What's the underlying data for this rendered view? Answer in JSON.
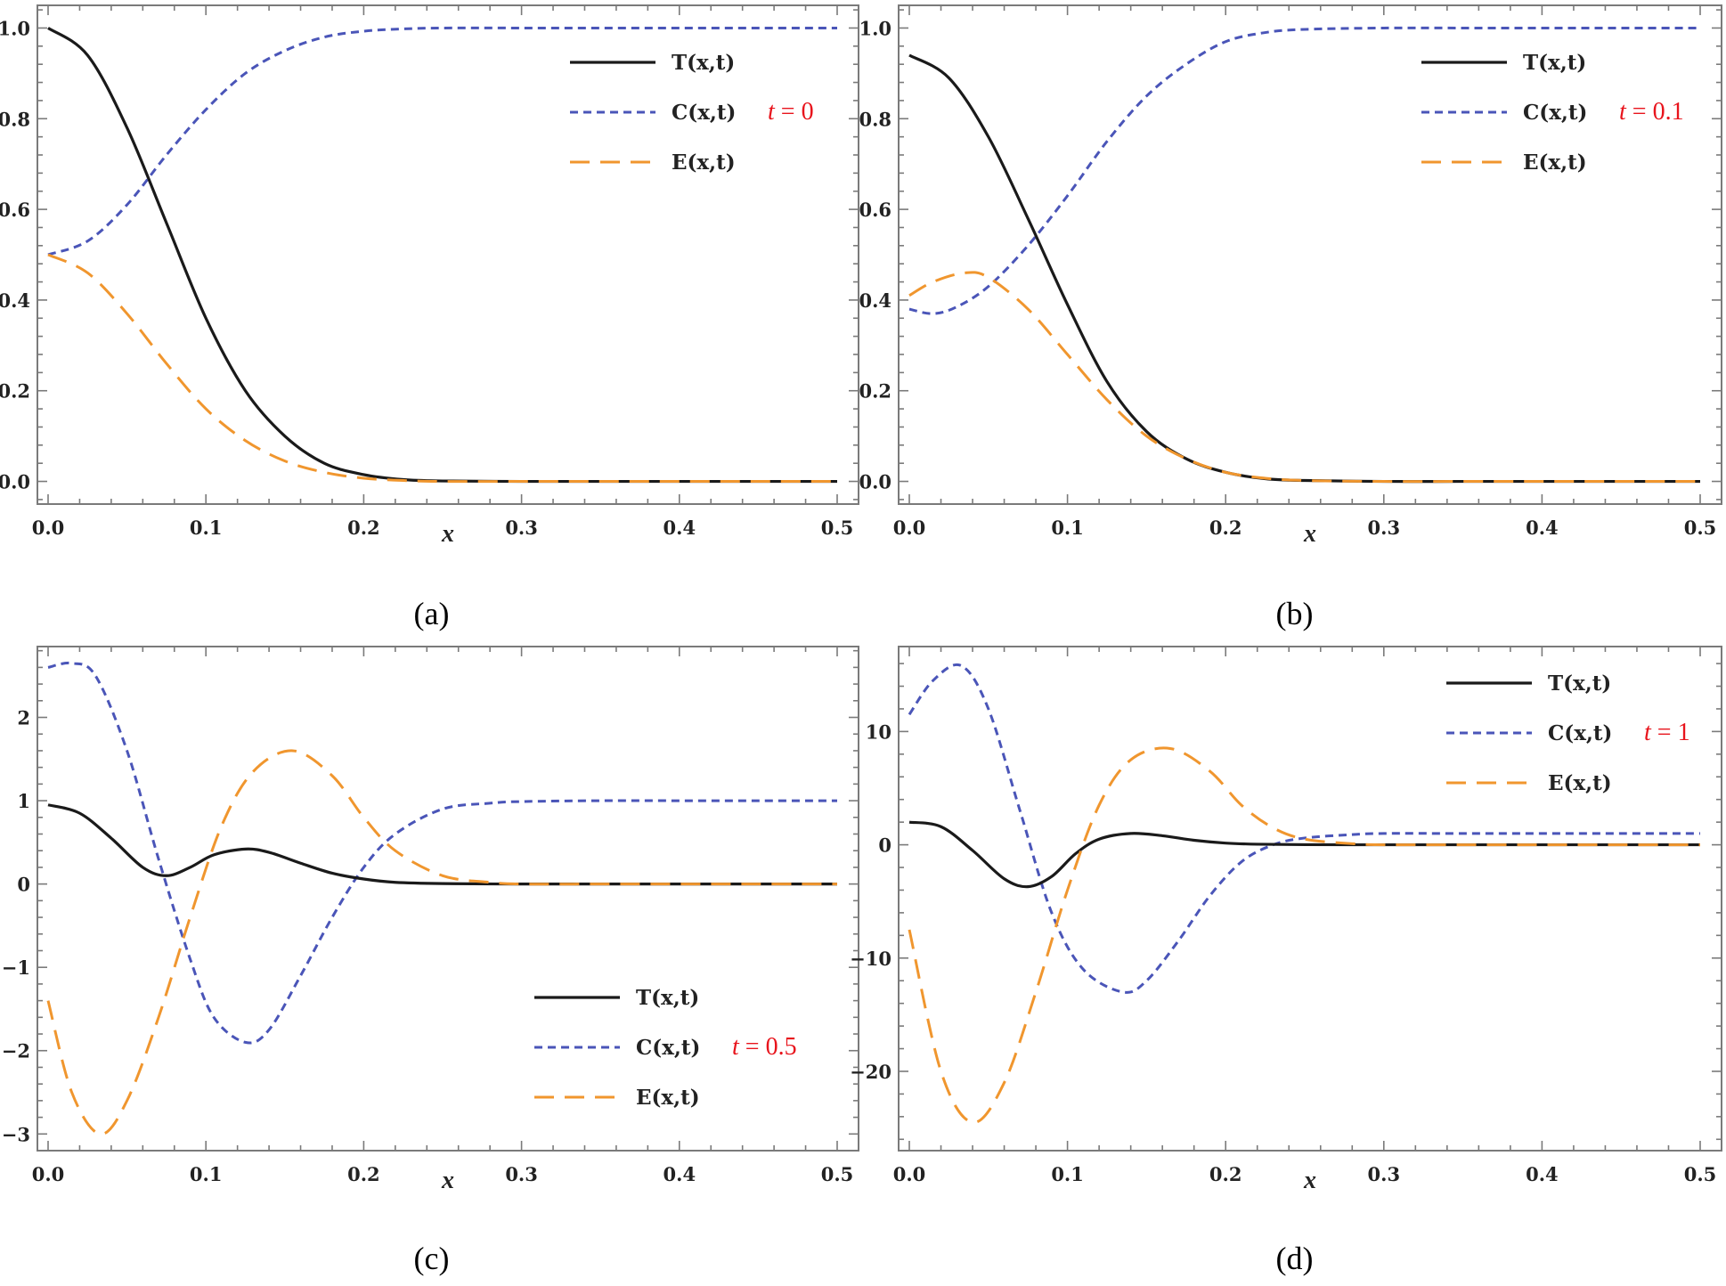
{
  "chart_data": [
    {
      "type": "line",
      "caption": "(a)",
      "xlabel": "x",
      "ylabel": "",
      "xlim": [
        0,
        0.5
      ],
      "ylim": [
        -0.05,
        1.05
      ],
      "xticks": [
        0,
        0.1,
        0.2,
        0.3,
        0.4,
        0.5
      ],
      "xtick_labels": [
        "0.0",
        "0.1",
        "0.2",
        "0.3",
        "0.4",
        "0.5"
      ],
      "yticks": [
        0,
        0.2,
        0.4,
        0.6,
        0.8,
        1.0
      ],
      "ytick_labels": [
        "0.0",
        "0.2",
        "0.4",
        "0.6",
        "0.8",
        "1.0"
      ],
      "time_label": "t = 0",
      "legend_position": "top-right",
      "colors": {
        "T": "#1a1a1a",
        "C": "#4a55b8",
        "E": "#f0962e"
      },
      "series": [
        {
          "name": "T(x,t)",
          "style": "solid",
          "x": [
            0,
            0.025,
            0.05,
            0.075,
            0.1,
            0.125,
            0.15,
            0.175,
            0.2,
            0.225,
            0.25,
            0.3,
            0.35,
            0.4,
            0.45,
            0.5
          ],
          "y": [
            1.0,
            0.94,
            0.78,
            0.57,
            0.36,
            0.2,
            0.1,
            0.04,
            0.015,
            0.004,
            0.001,
            0,
            0,
            0,
            0,
            0
          ]
        },
        {
          "name": "C(x,t)",
          "style": "dashed",
          "x": [
            0,
            0.025,
            0.05,
            0.075,
            0.1,
            0.125,
            0.15,
            0.175,
            0.2,
            0.225,
            0.25,
            0.3,
            0.35,
            0.4,
            0.45,
            0.5
          ],
          "y": [
            0.5,
            0.53,
            0.61,
            0.72,
            0.82,
            0.9,
            0.95,
            0.98,
            0.993,
            0.998,
            1.0,
            1.0,
            1.0,
            1.0,
            1.0,
            1.0
          ]
        },
        {
          "name": "E(x,t)",
          "style": "long-dashed",
          "x": [
            0,
            0.025,
            0.05,
            0.075,
            0.1,
            0.125,
            0.15,
            0.175,
            0.2,
            0.225,
            0.25,
            0.3,
            0.35,
            0.4,
            0.45,
            0.5
          ],
          "y": [
            0.5,
            0.46,
            0.37,
            0.26,
            0.16,
            0.09,
            0.045,
            0.02,
            0.007,
            0.002,
            0.0,
            0,
            0,
            0,
            0,
            0
          ]
        }
      ]
    },
    {
      "type": "line",
      "caption": "(b)",
      "xlabel": "x",
      "ylabel": "",
      "xlim": [
        0,
        0.5
      ],
      "ylim": [
        -0.05,
        1.05
      ],
      "xticks": [
        0,
        0.1,
        0.2,
        0.3,
        0.4,
        0.5
      ],
      "xtick_labels": [
        "0.0",
        "0.1",
        "0.2",
        "0.3",
        "0.4",
        "0.5"
      ],
      "yticks": [
        0,
        0.2,
        0.4,
        0.6,
        0.8,
        1.0
      ],
      "ytick_labels": [
        "0.0",
        "0.2",
        "0.4",
        "0.6",
        "0.8",
        "1.0"
      ],
      "time_label": "t = 0.1",
      "legend_position": "top-right",
      "colors": {
        "T": "#1a1a1a",
        "C": "#4a55b8",
        "E": "#f0962e"
      },
      "series": [
        {
          "name": "T(x,t)",
          "style": "solid",
          "x": [
            0,
            0.025,
            0.05,
            0.075,
            0.1,
            0.125,
            0.15,
            0.175,
            0.2,
            0.225,
            0.25,
            0.3,
            0.35,
            0.4,
            0.45,
            0.5
          ],
          "y": [
            0.94,
            0.89,
            0.76,
            0.58,
            0.39,
            0.22,
            0.11,
            0.05,
            0.02,
            0.006,
            0.002,
            0,
            0,
            0,
            0,
            0
          ]
        },
        {
          "name": "C(x,t)",
          "style": "dashed",
          "x": [
            0,
            0.015,
            0.03,
            0.05,
            0.075,
            0.1,
            0.125,
            0.15,
            0.175,
            0.2,
            0.225,
            0.25,
            0.3,
            0.35,
            0.4,
            0.45,
            0.5
          ],
          "y": [
            0.38,
            0.37,
            0.385,
            0.43,
            0.52,
            0.63,
            0.75,
            0.85,
            0.92,
            0.97,
            0.99,
            0.997,
            1.0,
            1.0,
            1.0,
            1.0,
            1.0
          ]
        },
        {
          "name": "E(x,t)",
          "style": "long-dashed",
          "x": [
            0,
            0.015,
            0.035,
            0.05,
            0.075,
            0.1,
            0.125,
            0.15,
            0.175,
            0.2,
            0.225,
            0.25,
            0.3,
            0.35,
            0.4,
            0.45,
            0.5
          ],
          "y": [
            0.41,
            0.44,
            0.46,
            0.45,
            0.38,
            0.28,
            0.18,
            0.1,
            0.05,
            0.02,
            0.007,
            0.002,
            0,
            0,
            0,
            0,
            0
          ]
        }
      ]
    },
    {
      "type": "line",
      "caption": "(c)",
      "xlabel": "x",
      "ylabel": "",
      "xlim": [
        0,
        0.5
      ],
      "ylim": [
        -3.2,
        2.85
      ],
      "xticks": [
        0,
        0.1,
        0.2,
        0.3,
        0.4,
        0.5
      ],
      "xtick_labels": [
        "0.0",
        "0.1",
        "0.2",
        "0.3",
        "0.4",
        "0.5"
      ],
      "yticks": [
        -3,
        -2,
        -1,
        0,
        1,
        2
      ],
      "ytick_labels": [
        "−3",
        "−2",
        "−1",
        "0",
        "1",
        "2"
      ],
      "time_label": "t = 0.5",
      "legend_position": "bottom-right",
      "colors": {
        "T": "#1a1a1a",
        "C": "#4a55b8",
        "E": "#f0962e"
      },
      "series": [
        {
          "name": "T(x,t)",
          "style": "solid",
          "x": [
            0,
            0.02,
            0.04,
            0.06,
            0.075,
            0.09,
            0.105,
            0.125,
            0.14,
            0.16,
            0.18,
            0.2,
            0.22,
            0.25,
            0.3,
            0.35,
            0.4,
            0.45,
            0.5
          ],
          "y": [
            0.95,
            0.85,
            0.55,
            0.2,
            0.1,
            0.2,
            0.35,
            0.42,
            0.38,
            0.25,
            0.13,
            0.06,
            0.02,
            0.005,
            0,
            0,
            0,
            0,
            0
          ]
        },
        {
          "name": "C(x,t)",
          "style": "dashed",
          "x": [
            0,
            0.015,
            0.03,
            0.05,
            0.07,
            0.09,
            0.105,
            0.125,
            0.14,
            0.16,
            0.18,
            0.2,
            0.22,
            0.25,
            0.28,
            0.3,
            0.35,
            0.4,
            0.45,
            0.5
          ],
          "y": [
            2.6,
            2.65,
            2.5,
            1.6,
            0.3,
            -0.9,
            -1.6,
            -1.9,
            -1.75,
            -1.1,
            -0.4,
            0.2,
            0.6,
            0.9,
            0.97,
            0.99,
            1.0,
            1.0,
            1.0,
            1.0
          ]
        },
        {
          "name": "E(x,t)",
          "style": "long-dashed",
          "x": [
            0,
            0.015,
            0.033,
            0.05,
            0.07,
            0.09,
            0.11,
            0.13,
            0.155,
            0.18,
            0.2,
            0.22,
            0.25,
            0.28,
            0.3,
            0.35,
            0.4,
            0.45,
            0.5
          ],
          "y": [
            -1.4,
            -2.5,
            -3.0,
            -2.6,
            -1.6,
            -0.4,
            0.7,
            1.35,
            1.6,
            1.3,
            0.8,
            0.4,
            0.1,
            0.02,
            0,
            0,
            0,
            0,
            0
          ]
        }
      ]
    },
    {
      "type": "line",
      "caption": "(d)",
      "xlabel": "x",
      "ylabel": "",
      "xlim": [
        0,
        0.5
      ],
      "ylim": [
        -27,
        17.5
      ],
      "xticks": [
        0,
        0.1,
        0.2,
        0.3,
        0.4,
        0.5
      ],
      "xtick_labels": [
        "0.0",
        "0.1",
        "0.2",
        "0.3",
        "0.4",
        "0.5"
      ],
      "yticks": [
        -20,
        -10,
        0,
        10
      ],
      "ytick_labels": [
        "−20",
        "−10",
        "0",
        "10"
      ],
      "time_label": "t = 1",
      "legend_position": "top-right",
      "colors": {
        "T": "#1a1a1a",
        "C": "#4a55b8",
        "E": "#f0962e"
      },
      "series": [
        {
          "name": "T(x,t)",
          "style": "solid",
          "x": [
            0,
            0.02,
            0.04,
            0.06,
            0.075,
            0.09,
            0.105,
            0.12,
            0.14,
            0.16,
            0.18,
            0.2,
            0.22,
            0.25,
            0.3,
            0.35,
            0.4,
            0.45,
            0.5
          ],
          "y": [
            2.0,
            1.6,
            -0.5,
            -3.0,
            -3.7,
            -2.8,
            -0.8,
            0.5,
            1.0,
            0.8,
            0.4,
            0.15,
            0.05,
            0.01,
            0,
            0,
            0,
            0,
            0
          ]
        },
        {
          "name": "C(x,t)",
          "style": "dashed",
          "x": [
            0,
            0.015,
            0.033,
            0.05,
            0.07,
            0.09,
            0.11,
            0.135,
            0.15,
            0.17,
            0.19,
            0.21,
            0.23,
            0.25,
            0.28,
            0.3,
            0.35,
            0.4,
            0.45,
            0.5
          ],
          "y": [
            11.5,
            14.5,
            15.8,
            12.0,
            3.0,
            -6.0,
            -11.0,
            -13.0,
            -12.0,
            -8.5,
            -4.5,
            -1.5,
            0.0,
            0.6,
            0.9,
            1.0,
            1.0,
            1.0,
            1.0,
            1.0
          ]
        },
        {
          "name": "E(x,t)",
          "style": "long-dashed",
          "x": [
            0,
            0.02,
            0.04,
            0.06,
            0.08,
            0.1,
            0.12,
            0.14,
            0.165,
            0.19,
            0.21,
            0.23,
            0.25,
            0.28,
            0.3,
            0.35,
            0.4,
            0.45,
            0.5
          ],
          "y": [
            -7.5,
            -20.0,
            -24.5,
            -21.0,
            -13.0,
            -4.0,
            3.5,
            7.5,
            8.5,
            6.5,
            3.5,
            1.5,
            0.5,
            0.1,
            0,
            0,
            0,
            0,
            0
          ]
        }
      ]
    }
  ]
}
